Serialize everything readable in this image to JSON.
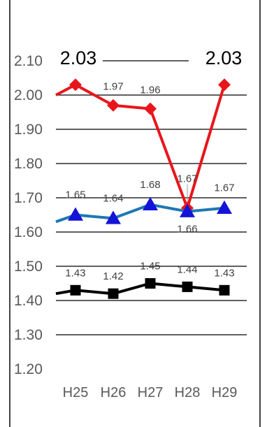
{
  "chart_data": {
    "type": "line",
    "categories": [
      "H25",
      "H26",
      "H27",
      "H28",
      "H29"
    ],
    "ylim": [
      1.2,
      2.1
    ],
    "yticks": [
      "1.20",
      "1.30",
      "1.40",
      "1.50",
      "1.60",
      "1.70",
      "1.80",
      "1.90",
      "2.00",
      "2.10"
    ],
    "grid": true,
    "series": [
      {
        "color": "#e8161b",
        "marker": "diamond",
        "values": [
          2.03,
          1.97,
          1.96,
          1.67,
          2.03
        ],
        "labels": [
          "2.03",
          "1.97",
          "1.96",
          "1.67",
          "2.03"
        ],
        "lead_in": 2.0
      },
      {
        "color": "#1f77b4",
        "marker": "triangle",
        "marker_color": "#1414d8",
        "values": [
          1.65,
          1.64,
          1.68,
          1.66,
          1.67
        ],
        "labels": [
          "1.65",
          "1.64",
          "1.68",
          "1.66",
          "1.67"
        ],
        "lead_in": 1.63
      },
      {
        "color": "#000000",
        "marker": "square",
        "values": [
          1.43,
          1.42,
          1.45,
          1.44,
          1.43
        ],
        "labels": [
          "1.43",
          "1.42",
          "1.45",
          "1.44",
          "1.43"
        ],
        "lead_in": 1.42
      }
    ]
  }
}
